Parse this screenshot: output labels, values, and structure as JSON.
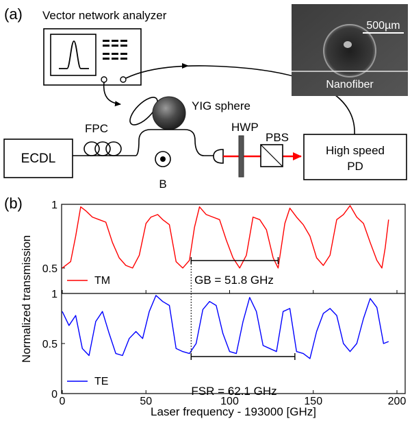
{
  "panel_a": {
    "label": "(a)",
    "vna_label": "Vector network analyzer",
    "ecdl_label": "ECDL",
    "fpc_label": "FPC",
    "yig_label": "YIG sphere",
    "b_label": "B",
    "hwp_label": "HWP",
    "pbs_label": "PBS",
    "pd_label_line1": "High speed",
    "pd_label_line2": "PD",
    "inset": {
      "scale_label": "500µm",
      "fiber_label": "Nanofiber"
    }
  },
  "panel_b": {
    "label": "(b)",
    "ylabel": "Normalized transmission",
    "xlabel": "Laser frequency - 193000 [GHz]",
    "legend_top": "TM",
    "legend_bottom": "TE",
    "annotation_gb": "GB = 51.8 GHz",
    "annotation_fsr": "FSR = 62.1 GHz"
  },
  "chart_data": {
    "type": "line",
    "x_range": [
      0,
      200
    ],
    "x_ticks": [
      0,
      50,
      100,
      150,
      200
    ],
    "subplots": [
      {
        "name": "TM",
        "color": "#ff0000",
        "ylim": [
          0.3,
          1.0
        ],
        "y_ticks": [
          "1",
          "0.5"
        ],
        "x": [
          0,
          5,
          8,
          11,
          14,
          18,
          22,
          26,
          30,
          34,
          38,
          42,
          46,
          50,
          53,
          57,
          60,
          64,
          68,
          72,
          76,
          79,
          82,
          86,
          90,
          94,
          98,
          102,
          106,
          110,
          114,
          118,
          122,
          126,
          129,
          133,
          136,
          140,
          144,
          148,
          152,
          156,
          160,
          164,
          168,
          172,
          176,
          180,
          184,
          188,
          191,
          193,
          195
        ],
        "y": [
          0.5,
          0.55,
          0.75,
          0.98,
          0.95,
          0.9,
          0.88,
          0.86,
          0.7,
          0.58,
          0.52,
          0.5,
          0.6,
          0.85,
          0.9,
          0.92,
          0.88,
          0.84,
          0.55,
          0.5,
          0.56,
          0.82,
          0.98,
          0.92,
          0.9,
          0.88,
          0.72,
          0.58,
          0.5,
          0.6,
          0.9,
          0.88,
          0.8,
          0.58,
          0.5,
          0.85,
          0.97,
          0.9,
          0.84,
          0.75,
          0.58,
          0.52,
          0.6,
          0.88,
          0.92,
          0.99,
          0.9,
          0.85,
          0.7,
          0.56,
          0.5,
          0.66,
          0.88
        ]
      },
      {
        "name": "TE",
        "color": "#0000ff",
        "ylim": [
          0.0,
          1.0
        ],
        "y_ticks": [
          "1",
          "0.5",
          "0"
        ],
        "x": [
          0,
          4,
          8,
          12,
          16,
          20,
          24,
          28,
          32,
          36,
          40,
          44,
          48,
          52,
          56,
          60,
          64,
          68,
          72,
          76,
          80,
          84,
          88,
          92,
          96,
          100,
          104,
          108,
          112,
          116,
          120,
          124,
          128,
          132,
          136,
          140,
          144,
          148,
          152,
          156,
          160,
          164,
          168,
          172,
          176,
          180,
          184,
          188,
          192,
          195
        ],
        "y": [
          0.82,
          0.68,
          0.78,
          0.45,
          0.38,
          0.72,
          0.82,
          0.6,
          0.4,
          0.38,
          0.55,
          0.62,
          0.55,
          0.82,
          0.98,
          0.92,
          0.88,
          0.45,
          0.42,
          0.4,
          0.5,
          0.84,
          0.92,
          0.88,
          0.6,
          0.42,
          0.4,
          0.72,
          0.96,
          0.82,
          0.48,
          0.45,
          0.42,
          0.82,
          0.85,
          0.42,
          0.4,
          0.35,
          0.62,
          0.8,
          0.85,
          0.78,
          0.5,
          0.42,
          0.5,
          0.75,
          0.95,
          0.86,
          0.5,
          0.52
        ]
      }
    ],
    "annotations": {
      "gb_span": [
        77,
        129
      ],
      "fsr_span": [
        77,
        139
      ],
      "dotted_x": 77
    }
  }
}
